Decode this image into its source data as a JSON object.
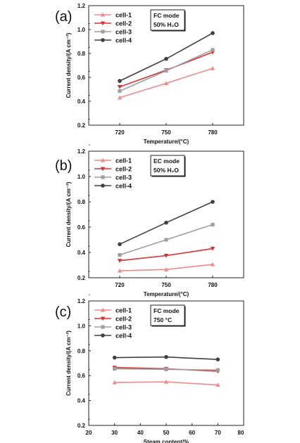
{
  "chart_data": [
    {
      "type": "line",
      "panel_label": "(a)",
      "x": [
        720,
        750,
        780
      ],
      "xlim": [
        700,
        800
      ],
      "xticks": [
        "720",
        "750",
        "780"
      ],
      "ylim": [
        0.2,
        1.2
      ],
      "yticks": [
        "0.2",
        "0.4",
        "0.6",
        "0.8",
        "1.0",
        "1.2"
      ],
      "xlabel": "Temperature/(°C)",
      "ylabel": "Current density/(A cm⁻²)",
      "box_line1": "FC mode",
      "box_line2": "50% H₂O",
      "series": [
        {
          "name": "cell-1",
          "marker": "triangle-up",
          "color": "#ef8a8a",
          "values": [
            0.43,
            0.55,
            0.675
          ]
        },
        {
          "name": "cell-2",
          "marker": "triangle-down",
          "color": "#d93030",
          "values": [
            0.52,
            0.66,
            0.81
          ]
        },
        {
          "name": "cell-3",
          "marker": "square",
          "color": "#9f9f9f",
          "values": [
            0.485,
            0.655,
            0.83
          ]
        },
        {
          "name": "cell-4",
          "marker": "circle",
          "color": "#404040",
          "values": [
            0.57,
            0.755,
            0.97
          ]
        }
      ]
    },
    {
      "type": "line",
      "panel_label": "(b)",
      "x": [
        720,
        750,
        780
      ],
      "xlim": [
        700,
        800
      ],
      "xticks": [
        "720",
        "750",
        "780"
      ],
      "ylim": [
        0.2,
        1.2
      ],
      "yticks": [
        "0.2",
        "0.4",
        "0.6",
        "0.8",
        "1.0",
        "1.2"
      ],
      "xlabel": "Temperature/(°C)",
      "ylabel": "Current density/(A cm⁻²)",
      "box_line1": "EC mode",
      "box_line2": "50% H₂O",
      "series": [
        {
          "name": "cell-1",
          "marker": "triangle-up",
          "color": "#ef8a8a",
          "values": [
            0.255,
            0.265,
            0.305
          ]
        },
        {
          "name": "cell-2",
          "marker": "triangle-down",
          "color": "#d93030",
          "values": [
            0.335,
            0.375,
            0.43
          ]
        },
        {
          "name": "cell-3",
          "marker": "square",
          "color": "#9f9f9f",
          "values": [
            0.38,
            0.5,
            0.62
          ]
        },
        {
          "name": "cell-4",
          "marker": "circle",
          "color": "#404040",
          "values": [
            0.465,
            0.635,
            0.8
          ]
        }
      ]
    },
    {
      "type": "line",
      "panel_label": "(c)",
      "x": [
        30,
        50,
        70
      ],
      "xlim": [
        20,
        80
      ],
      "xticks": [
        "20",
        "30",
        "40",
        "50",
        "60",
        "70",
        "80"
      ],
      "ylim": [
        0.2,
        1.2
      ],
      "yticks": [
        "0.2",
        "0.4",
        "0.6",
        "0.8",
        "1.0",
        "1.2"
      ],
      "xlabel": "Steam content/%",
      "ylabel": "Current density/(A cm⁻²)",
      "box_line1": "FC mode",
      "box_line2": "750 °C",
      "series": [
        {
          "name": "cell-1",
          "marker": "triangle-up",
          "color": "#ef8a8a",
          "values": [
            0.545,
            0.55,
            0.525
          ]
        },
        {
          "name": "cell-2",
          "marker": "triangle-down",
          "color": "#d93030",
          "values": [
            0.665,
            0.655,
            0.635
          ]
        },
        {
          "name": "cell-3",
          "marker": "square",
          "color": "#9f9f9f",
          "values": [
            0.655,
            0.65,
            0.645
          ]
        },
        {
          "name": "cell-4",
          "marker": "circle",
          "color": "#404040",
          "values": [
            0.745,
            0.75,
            0.73
          ]
        }
      ]
    }
  ]
}
